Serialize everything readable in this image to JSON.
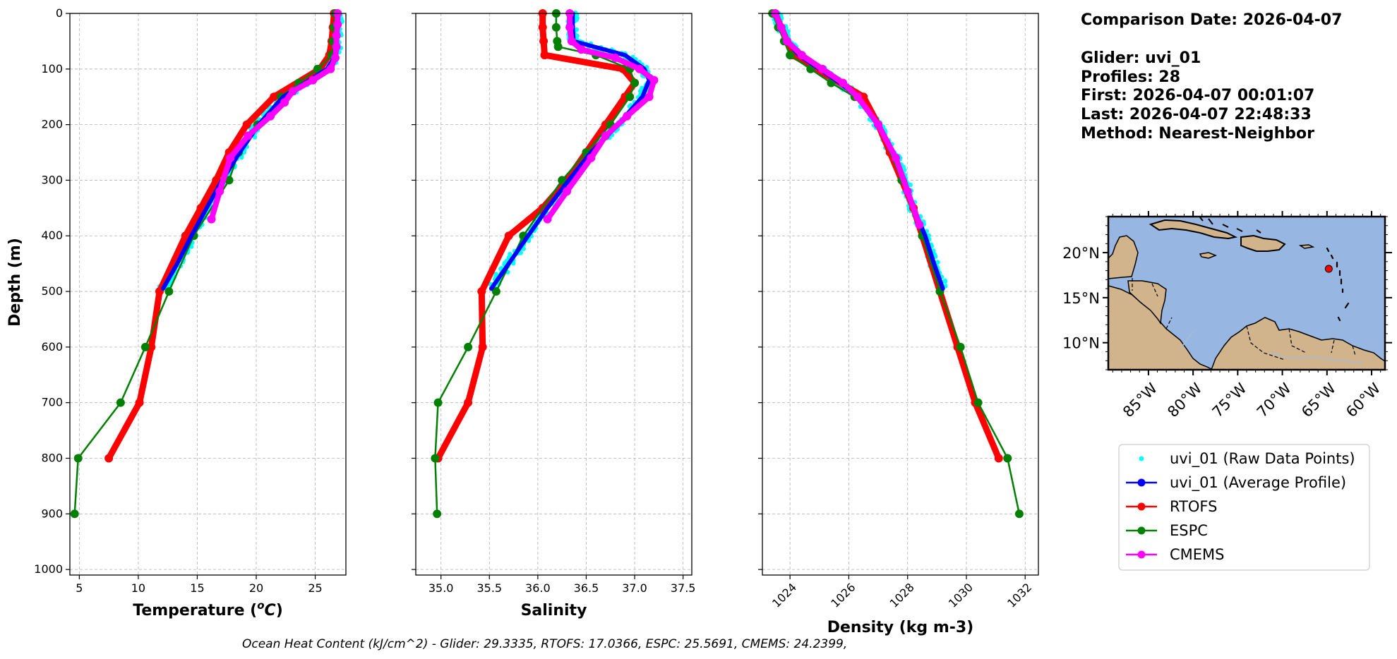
{
  "info": {
    "comparison_date": "Comparison Date: 2026-04-07",
    "glider": "Glider: uvi_01",
    "profiles": "Profiles: 28",
    "first": "First: 2026-04-07 00:01:07",
    "last": "Last: 2026-04-07 22:48:33",
    "method": "Method: Nearest-Neighbor"
  },
  "footer_text": "Ocean Heat Content (kJ/cm^2) - Glider: 29.3335,  RTOFS: 17.0366,  ESPC: 25.5691,  CMEMS: 24.2399,",
  "colors": {
    "raw": "#00ffff",
    "glider": "#0000ff",
    "rtofs": "#ff0000",
    "espc": "#008000",
    "cmems": "#ff00ff",
    "ocean": "#97b6e1",
    "land": "#d2b48c"
  },
  "chart_data": [
    {
      "type": "line",
      "xlabel": "Temperature (°C)",
      "xlabel_html": "Temperature (<tspan font-style='italic' baseline-shift='super' font-size='15'>o</tspan><tspan font-style='italic'>C</tspan>)",
      "ylabel": "Depth (m)",
      "xlim": [
        4.2,
        27.6
      ],
      "ylim": [
        1010,
        0
      ],
      "xticks": [
        5,
        10,
        15,
        20,
        25
      ],
      "xtick_labels": [
        "5",
        "10",
        "15",
        "20",
        "25"
      ],
      "yticks": [
        0,
        100,
        200,
        300,
        400,
        500,
        600,
        700,
        800,
        900,
        1000
      ],
      "ytick_labels": [
        "0",
        "100",
        "200",
        "300",
        "400",
        "500",
        "600",
        "700",
        "800",
        "900",
        "1000"
      ],
      "grid": true,
      "series": [
        {
          "name": "RTOFS",
          "depth": [
            0,
            25,
            50,
            75,
            100,
            150,
            200,
            250,
            300,
            350,
            400,
            500,
            600,
            700,
            800
          ],
          "values": [
            26.6,
            26.5,
            26.4,
            26.2,
            25.4,
            21.5,
            19.2,
            17.7,
            16.6,
            15.3,
            14.0,
            11.8,
            11.1,
            10.1,
            7.5
          ]
        },
        {
          "name": "ESPC",
          "depth": [
            0,
            25,
            50,
            75,
            100,
            125,
            150,
            200,
            250,
            300,
            400,
            500,
            600,
            700,
            800,
            900
          ],
          "values": [
            26.7,
            26.6,
            26.5,
            26.4,
            25.2,
            23.6,
            22.1,
            20.1,
            18.5,
            17.7,
            14.7,
            12.6,
            10.6,
            8.5,
            4.9,
            4.6
          ]
        },
        {
          "name": "CMEMS",
          "depth": [
            0,
            20,
            40,
            60,
            80,
            100,
            120,
            140,
            160,
            185,
            220,
            260,
            320,
            370
          ],
          "values": [
            26.9,
            26.9,
            26.8,
            26.8,
            26.7,
            26.3,
            24.8,
            23.1,
            22.4,
            21.2,
            19.3,
            17.8,
            16.9,
            16.2
          ]
        },
        {
          "name": "uvi_01 (Average Profile)",
          "depth": [
            0,
            20,
            40,
            60,
            80,
            100,
            120,
            150,
            200,
            250,
            300,
            350,
            400,
            450,
            495
          ],
          "values": [
            26.9,
            26.9,
            26.8,
            26.8,
            26.6,
            26.0,
            24.5,
            22.3,
            20.2,
            18.6,
            17.1,
            15.8,
            14.5,
            13.3,
            12.1
          ]
        }
      ]
    },
    {
      "type": "line",
      "xlabel": "Salinity",
      "xlim": [
        34.74,
        37.59
      ],
      "ylim": [
        1010,
        0
      ],
      "xticks": [
        35.0,
        35.5,
        36.0,
        36.5,
        37.0,
        37.5
      ],
      "xtick_labels": [
        "35.0",
        "35.5",
        "36.0",
        "36.5",
        "37.0",
        "37.5"
      ],
      "yticks": [
        0,
        100,
        200,
        300,
        400,
        500,
        600,
        700,
        800,
        900,
        1000
      ],
      "grid": true,
      "series": [
        {
          "name": "RTOFS",
          "depth": [
            0,
            25,
            50,
            75,
            100,
            125,
            150,
            200,
            250,
            300,
            350,
            400,
            500,
            600,
            700,
            800
          ],
          "values": [
            36.05,
            36.05,
            36.06,
            36.07,
            36.88,
            37.0,
            36.9,
            36.7,
            36.5,
            36.3,
            36.05,
            35.7,
            35.42,
            35.43,
            35.28,
            34.97
          ]
        },
        {
          "name": "ESPC",
          "depth": [
            0,
            25,
            50,
            60,
            75,
            100,
            125,
            150,
            200,
            250,
            300,
            400,
            500,
            600,
            700,
            800,
            900
          ],
          "values": [
            36.19,
            36.19,
            36.2,
            36.21,
            36.6,
            36.95,
            37.0,
            36.95,
            36.75,
            36.5,
            36.25,
            35.85,
            35.57,
            35.28,
            34.97,
            34.94,
            34.96
          ]
        },
        {
          "name": "CMEMS",
          "depth": [
            0,
            25,
            50,
            65,
            80,
            100,
            120,
            150,
            185,
            220,
            260,
            320,
            370
          ],
          "values": [
            36.33,
            36.33,
            36.35,
            36.45,
            36.8,
            37.05,
            37.2,
            37.15,
            36.92,
            36.7,
            36.55,
            36.3,
            36.1
          ]
        },
        {
          "name": "uvi_01 (Average Profile)",
          "depth": [
            0,
            25,
            50,
            75,
            100,
            120,
            150,
            200,
            250,
            300,
            350,
            400,
            450,
            495
          ],
          "values": [
            36.36,
            36.36,
            36.37,
            36.9,
            37.1,
            37.15,
            37.08,
            36.83,
            36.55,
            36.32,
            36.1,
            35.9,
            35.7,
            35.52
          ]
        }
      ]
    },
    {
      "type": "line",
      "xlabel": "Density (kg m-3)",
      "xlim": [
        1023.06,
        1032.45
      ],
      "ylim": [
        1010,
        0
      ],
      "xticks": [
        1024,
        1026,
        1028,
        1030,
        1032
      ],
      "xtick_labels": [
        "1024",
        "1026",
        "1028",
        "1030",
        "1032"
      ],
      "yticks": [
        0,
        100,
        200,
        300,
        400,
        500,
        600,
        700,
        800,
        900,
        1000
      ],
      "grid": true,
      "series": [
        {
          "name": "RTOFS",
          "depth": [
            0,
            25,
            50,
            75,
            100,
            150,
            200,
            250,
            300,
            350,
            400,
            500,
            600,
            700,
            800
          ],
          "values": [
            1023.5,
            1023.7,
            1023.9,
            1024.1,
            1024.9,
            1026.5,
            1027.0,
            1027.4,
            1027.8,
            1028.2,
            1028.5,
            1029.1,
            1029.7,
            1030.3,
            1031.1
          ]
        },
        {
          "name": "ESPC",
          "depth": [
            0,
            25,
            50,
            75,
            100,
            125,
            150,
            200,
            300,
            400,
            500,
            600,
            700,
            800,
            900
          ],
          "values": [
            1023.4,
            1023.6,
            1023.8,
            1024.0,
            1024.7,
            1025.4,
            1026.2,
            1027.0,
            1027.8,
            1028.5,
            1029.1,
            1029.8,
            1030.4,
            1031.4,
            1031.8
          ]
        },
        {
          "name": "CMEMS",
          "depth": [
            0,
            25,
            50,
            75,
            100,
            125,
            150,
            200,
            260,
            320,
            380
          ],
          "values": [
            1023.5,
            1023.7,
            1023.9,
            1024.4,
            1025.1,
            1025.8,
            1026.3,
            1027.0,
            1027.6,
            1028.0,
            1028.4
          ]
        },
        {
          "name": "uvi_01 (Average Profile)",
          "depth": [
            0,
            25,
            50,
            75,
            100,
            125,
            150,
            200,
            250,
            300,
            350,
            400,
            450,
            495
          ],
          "values": [
            1023.5,
            1023.7,
            1023.9,
            1024.3,
            1025.0,
            1025.7,
            1026.3,
            1027.0,
            1027.5,
            1027.9,
            1028.2,
            1028.6,
            1028.9,
            1029.2
          ]
        }
      ]
    }
  ],
  "map": {
    "lat_ticks": [
      "20°N",
      "15°N",
      "10°N"
    ],
    "lon_ticks": [
      "85°W",
      "80°W",
      "75°W",
      "70°W",
      "65°W",
      "60°W"
    ],
    "xlim": [
      -89.5,
      -58.5
    ],
    "ylim": [
      7,
      24
    ],
    "glider_position": [
      -64.8,
      18.2
    ]
  },
  "legend": [
    {
      "label": "uvi_01 (Raw Data Points)",
      "key": "raw"
    },
    {
      "label": "uvi_01 (Average Profile)",
      "key": "glider"
    },
    {
      "label": "RTOFS",
      "key": "rtofs"
    },
    {
      "label": "ESPC",
      "key": "espc"
    },
    {
      "label": "CMEMS",
      "key": "cmems"
    }
  ]
}
